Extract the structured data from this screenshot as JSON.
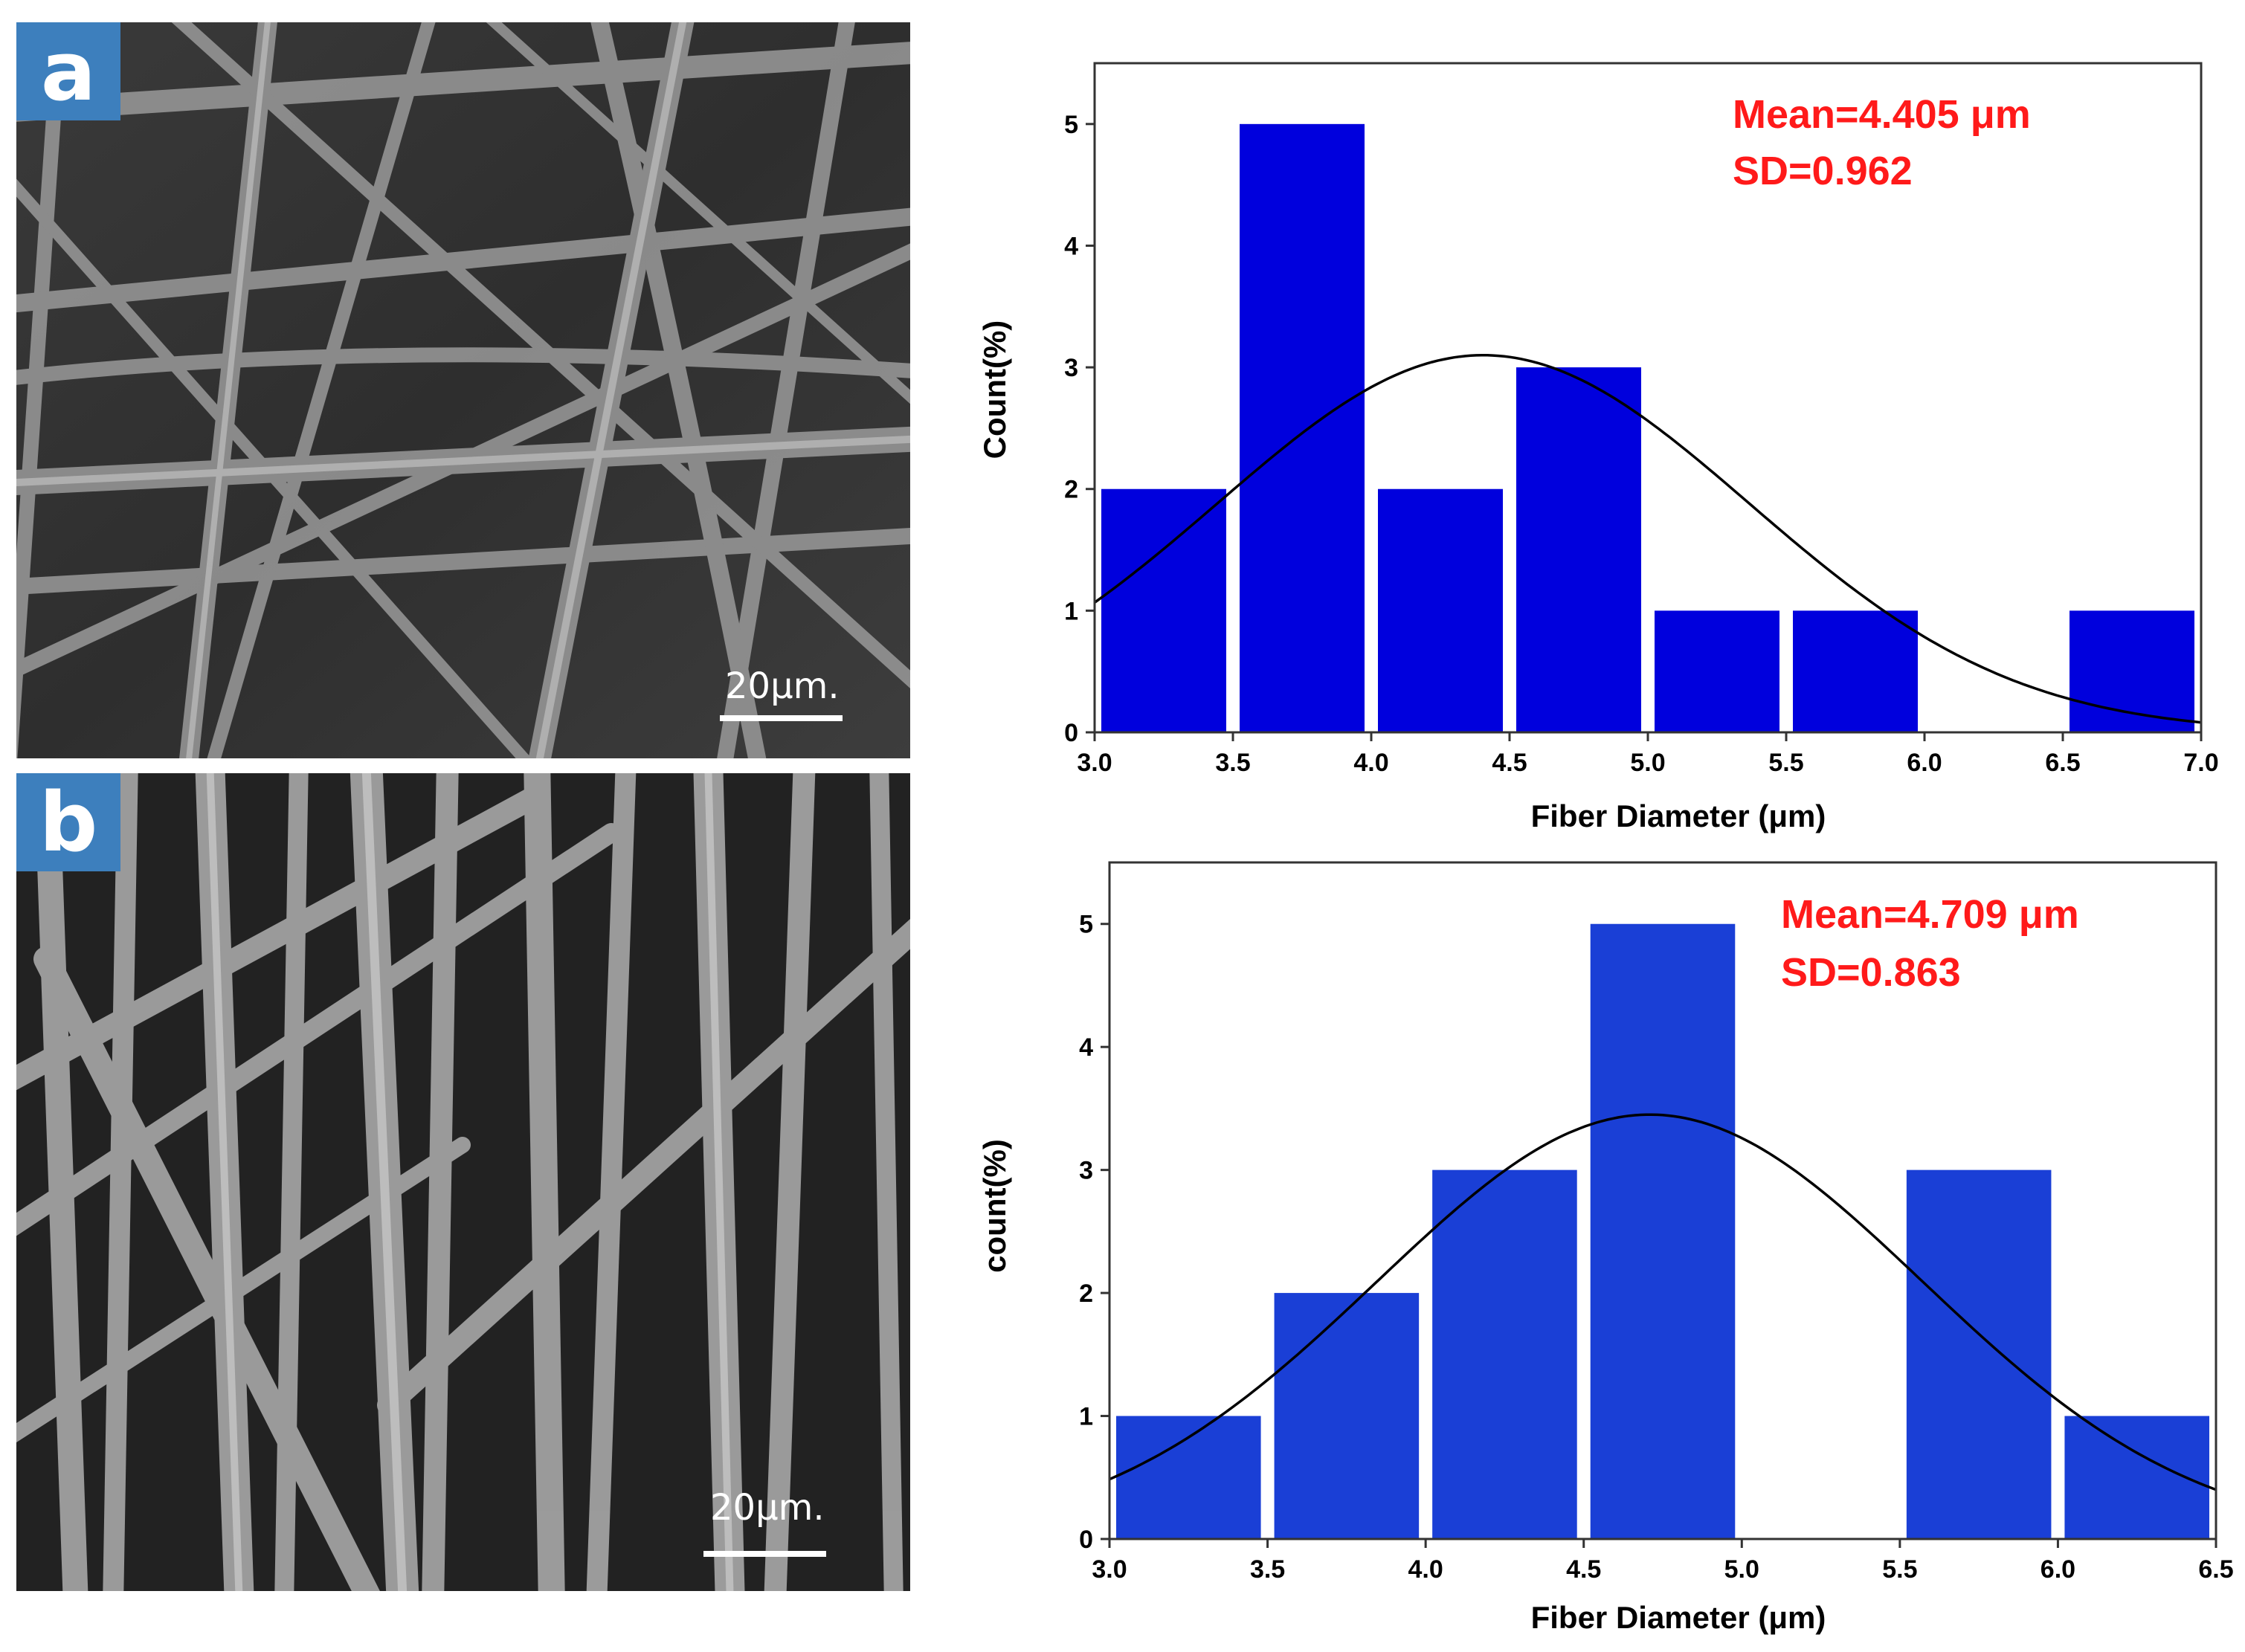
{
  "panels": [
    {
      "label": "a",
      "scale_text": "20μm."
    },
    {
      "label": "b",
      "scale_text": "20μm."
    }
  ],
  "colors": {
    "bar": "#0000dd",
    "bar_b": "#1a3fd6",
    "fit_curve": "#000000",
    "stats": "#ff1a1a",
    "label_bg": "#3d7fbd"
  },
  "chart_data": [
    {
      "type": "bar",
      "xlabel": "Fiber Diameter (μm)",
      "ylabel": "Count(%)",
      "xlim": [
        3.0,
        7.0
      ],
      "ylim": [
        0,
        5.5
      ],
      "x_ticks": [
        "3.0",
        "3.5",
        "4.0",
        "4.5",
        "5.0",
        "5.5",
        "6.0",
        "6.5",
        "7.0"
      ],
      "y_ticks": [
        "0",
        "1",
        "2",
        "3",
        "4",
        "5"
      ],
      "bins": [
        {
          "x0": 3.0,
          "x1": 3.5,
          "value": 2
        },
        {
          "x0": 3.5,
          "x1": 4.0,
          "value": 5
        },
        {
          "x0": 4.0,
          "x1": 4.5,
          "value": 2
        },
        {
          "x0": 4.5,
          "x1": 5.0,
          "value": 3
        },
        {
          "x0": 5.0,
          "x1": 5.5,
          "value": 1
        },
        {
          "x0": 5.5,
          "x1": 6.0,
          "value": 1
        },
        {
          "x0": 6.0,
          "x1": 6.5,
          "value": 0
        },
        {
          "x0": 6.5,
          "x1": 7.0,
          "value": 1
        }
      ],
      "fit": {
        "type": "normal",
        "mean": 4.405,
        "sd": 0.962,
        "peak": 3.1
      },
      "annotation_mean": "Mean=4.405 μm",
      "annotation_sd": "SD=0.962"
    },
    {
      "type": "bar",
      "xlabel": "Fiber Diameter (μm)",
      "ylabel": "count(%)",
      "xlim": [
        3.0,
        6.5
      ],
      "ylim": [
        0,
        5.5
      ],
      "x_ticks": [
        "3.0",
        "3.5",
        "4.0",
        "4.5",
        "5.0",
        "5.5",
        "6.0",
        "6.5"
      ],
      "y_ticks": [
        "0",
        "1",
        "2",
        "3",
        "4",
        "5"
      ],
      "bins": [
        {
          "x0": 3.0,
          "x1": 3.5,
          "value": 1
        },
        {
          "x0": 3.5,
          "x1": 4.0,
          "value": 2
        },
        {
          "x0": 4.0,
          "x1": 4.5,
          "value": 3
        },
        {
          "x0": 4.5,
          "x1": 5.0,
          "value": 5
        },
        {
          "x0": 5.0,
          "x1": 5.5,
          "value": 0
        },
        {
          "x0": 5.5,
          "x1": 6.0,
          "value": 3
        },
        {
          "x0": 6.0,
          "x1": 6.5,
          "value": 1
        }
      ],
      "fit": {
        "type": "normal",
        "mean": 4.709,
        "sd": 0.863,
        "peak": 3.45
      },
      "annotation_mean": "Mean=4.709 μm",
      "annotation_sd": "SD=0.863"
    }
  ]
}
